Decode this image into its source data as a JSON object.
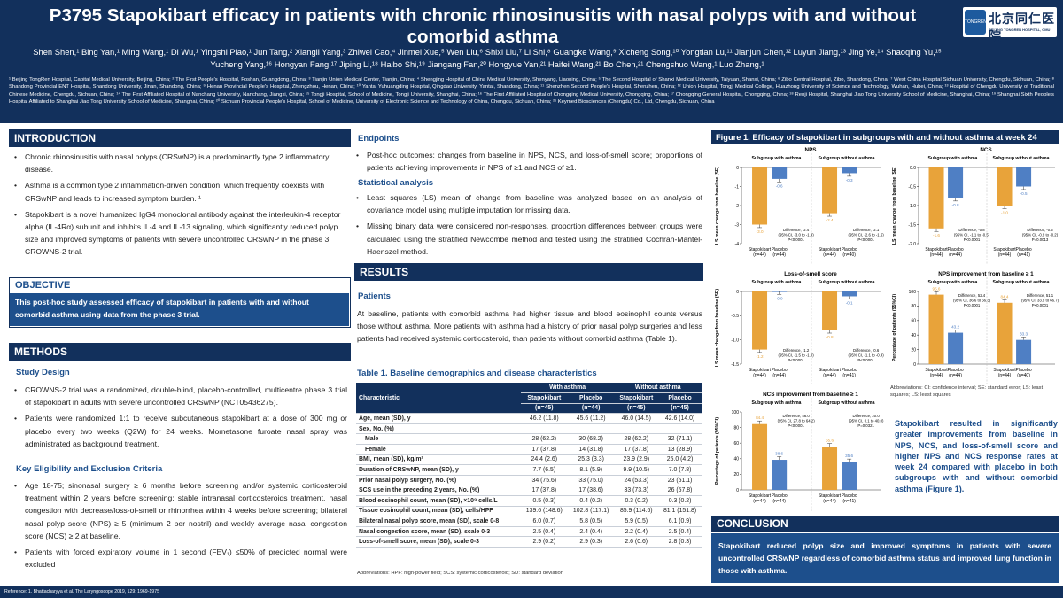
{
  "header": {
    "title": "P3795 Stapokibart efficacy in patients with chronic rhinosinusitis with nasal polyps with and without comorbid asthma",
    "authors": "Shen Shen,¹ Bing Yan,¹ Ming Wang,¹ Di Wu,¹ Yingshi Piao,¹ Jun Tang,² Xiangli Yang,³ Zhiwei Cao,⁴ Jinmei Xue,⁵ Wen Liu,⁶ Shixi Liu,⁷ Li Shi,⁸ Guangke Wang,⁹ Xicheng Song,¹⁰ Yongtian Lu,¹¹ Jianjun Chen,¹² Luyun Jiang,¹³ Jing Ye,¹⁴ Shaoqing Yu,¹⁵ Yucheng Yang,¹⁶ Hongyan Fang,¹⁷ Jiping Li,¹⁸ Haibo Shi,¹⁹ Jiangang Fan,²⁰ Hongyue Yan,²¹ Haifei Wang,²¹ Bo Chen,²¹ Chengshuo Wang,¹ Luo Zhang,¹",
    "affiliations": "¹ Beijing TongRen Hospital, Capital Medical University, Beijing, China; ² The First People's Hospital, Foshan, Guangdong, China; ³ Tianjin Union Medical Center, Tianjin, China; ⁴ Shengjing Hospital of China Medical University, Shenyang, Liaoning, China; ⁵ The Second Hospital of Shanxi Medical University, Taiyuan, Shanxi, China; ⁶ Zibo Central Hospital, Zibo, Shandong, China; ⁷ West China Hospital Sichuan University, Chengdu, Sichuan, China; ⁸ Shandong Provincial ENT Hospital, Shandong University, Jinan, Shandong, China; ⁹ Henan Provincial People's Hospital, Zhengzhou, Henan, China; ¹⁰ Yantai Yuhuangding Hospital, Qingdao University, Yantai, Shandong, China; ¹¹ Shenzhen Second People's Hospital, Shenzhen, China; ¹² Union Hospital, Tongji Medical College, Huazhong University of Science and Technology, Wuhan, Hubei, China; ¹³ Hospital of Chengdu University of Traditional Chinese Medicine, Chengdu, Sichuan, China; ¹⁴ The First Affiliated Hospital of Nanchang University, Nanchang, Jiangxi, China; ¹⁵ Tongji Hospital, School of Medicine, Tongji University, Shanghai, China; ¹⁶ The First Affiliated Hospital of Chongqing Medical University, Chongqing, China; ¹⁷ Chongqing General Hospital, Chongqing, China; ¹⁸ Renji Hospital, Shanghai Jiao Tong University School of Medicine, Shanghai, China; ¹⁹ Shanghai Sixth People's Hospital Affiliated to Shanghai Jiao Tong University School of Medicine, Shanghai, China; ²⁰ Sichuan Provincial People's Hospital, School of Medicine, University of Electronic Science and Technology of China, Chengdu, Sichuan, China; ²¹ Keymed Biosciences (Chengdu) Co., Ltd, Chengdu, Sichuan, China",
    "logo_badge": "TONGREN",
    "logo_cn": "北京同仁医院",
    "logo_en": "BEIJING TONGREN HOSPITAL, CMU"
  },
  "intro": {
    "heading": "INTRODUCTION",
    "bullets": [
      "Chronic rhinosinusitis with nasal polyps (CRSwNP) is a predominantly type 2 inflammatory disease.",
      "Asthma is a common type 2 inflammation-driven condition, which frequently coexists with CRSwNP and leads to increased symptom burden. ¹",
      "Stapokibart is a novel humanized IgG4 monoclonal antibody against the interleukin-4 receptor alpha (IL-4Rα) subunit and inhibits IL-4 and IL-13 signaling, which significantly reduced polyp size and improved symptoms of patients with severe uncontrolled CRSwNP in the phase 3 CROWNS-2 trial."
    ]
  },
  "objective": {
    "heading": "OBJECTIVE",
    "text": "This post-hoc study assessed efficacy of stapokibart in patients with and without comorbid asthma using data from the phase 3 trial."
  },
  "methods": {
    "heading": "METHODS",
    "design_heading": "Study Design",
    "design_bullets": [
      "CROWNS-2 trial was a randomized, double-blind, placebo-controlled, multicentre phase 3 trial of stapokibart in adults with severe uncontrolled CRSwNP (NCT05436275).",
      "Patients were randomized 1:1 to receive subcutaneous stapokibart at a dose of 300 mg or placebo every two weeks (Q2W) for 24 weeks. Mometasone furoate nasal spray was administrated as background treatment."
    ],
    "elig_heading": "Key Eligibility and Exclusion Criteria",
    "elig_bullets": [
      "Age 18-75; sinonasal surgery ≥ 6 months before screening and/or systemic corticosteroid treatment within 2 years before screening; stable intranasal corticosteroids treatment, nasal congestion with decrease/loss-of-smell or rhinorrhea within 4 weeks before screening; bilateral nasal polyp score (NPS) ≥ 5 (minimum 2 per nostril) and weekly average nasal congestion score (NCS) ≥ 2 at baseline.",
      "Patients with forced expiratory volume in 1 second (FEV₁) ≤50% of predicted normal were excluded"
    ]
  },
  "endpoints": {
    "heading": "Endpoints",
    "bullets": [
      "Post-hoc outcomes: changes from baseline in NPS, NCS, and loss-of-smell score; proportions of patients achieving improvements in NPS of ≥1 and NCS of ≥1."
    ]
  },
  "stats": {
    "heading": "Statistical analysis",
    "bullets": [
      "Least squares (LS) mean of change from baseline was analyzed based on an analysis of covariance model using multiple imputation for missing data.",
      "Missing binary data were considered non-responses, proportion differences between groups were calculated using the stratified Newcombe method and tested using the stratified Cochran-Mantel-Haenszel method."
    ]
  },
  "results": {
    "heading": "RESULTS",
    "patients_heading": "Patients",
    "patients_text": "At baseline, patients with comorbid asthma had higher tissue and blood eosinophil counts versus those without asthma. More patients with asthma had a history of prior nasal polyp surgeries and less patients had received systemic corticosteroid, than patients without comorbid asthma (Table 1)."
  },
  "table": {
    "title": "Table 1. Baseline demographics and disease characteristics",
    "char_header": "Characteristic",
    "group_with": "With asthma",
    "group_without": "Without asthma",
    "col_labels": [
      "Stapokibart",
      "Placebo",
      "Stapokibart",
      "Placebo"
    ],
    "col_ns": [
      "(n=45)",
      "(n=44)",
      "(n=45)",
      "(n=45)"
    ],
    "rows": [
      [
        "Age, mean (SD), y",
        "46.2 (11.8)",
        "45.6 (11.2)",
        "46.0 (14.5)",
        "42.6 (14.0)"
      ],
      [
        "Sex, No. (%)",
        "",
        "",
        "",
        ""
      ],
      [
        "Male",
        "28 (62.2)",
        "30 (68.2)",
        "28 (62.2)",
        "32 (71.1)"
      ],
      [
        "Female",
        "17 (37.8)",
        "14 (31.8)",
        "17 (37.8)",
        "13 (28.9)"
      ],
      [
        "BMI, mean (SD), kg/m²",
        "24.4 (2.6)",
        "25.3 (3.3)",
        "23.9 (2.9)",
        "25.0 (4.2)"
      ],
      [
        "Duration of CRSwNP, mean (SD), y",
        "7.7 (6.5)",
        "8.1 (5.9)",
        "9.9 (10.5)",
        "7.0 (7.8)"
      ],
      [
        "Prior nasal polyp surgery, No. (%)",
        "34 (75.6)",
        "33 (75.0)",
        "24 (53.3)",
        "23 (51.1)"
      ],
      [
        "SCS use in the preceding 2 years, No. (%)",
        "17 (37.8)",
        "17 (38.6)",
        "33 (73.3)",
        "26 (57.8)"
      ],
      [
        "Blood eosinophil count, mean (SD), ×10⁹ cells/L",
        "0.5 (0.3)",
        "0.4 (0.2)",
        "0.3 (0.2)",
        "0.3 (0.2)"
      ],
      [
        "Tissue eosinophil count, mean (SD), cells/HPF",
        "139.6 (148.6)",
        "102.8 (117.1)",
        "85.9 (114.6)",
        "81.1 (151.8)"
      ],
      [
        "Bilateral nasal polyp score, mean (SD), scale 0-8",
        "6.0 (0.7)",
        "5.8 (0.5)",
        "5.9 (0.5)",
        "6.1 (0.9)"
      ],
      [
        "Nasal congestion score, mean (SD), scale 0-3",
        "2.5 (0.4)",
        "2.4 (0.4)",
        "2.2 (0.4)",
        "2.5 (0.4)"
      ],
      [
        "Loss-of-smell score, mean (SD), scale 0-3",
        "2.9 (0.2)",
        "2.9 (0.3)",
        "2.6 (0.6)",
        "2.8 (0.3)"
      ]
    ],
    "abbrev": "Abbreviations: HPF: high-power field; SCS: systemic corticosteroid; SD: standard deviation"
  },
  "figure": {
    "title": "Figure 1. Efficacy of stapokibart in subgroups with and without asthma at week 24",
    "abbrev": "Abbreviations: CI: confidence interval; SE: standard error; LS: least squares; LS: least squares",
    "colors": {
      "stapokibart": "#e8a33a",
      "placebo": "#4f7fc4"
    }
  },
  "chart_data": [
    {
      "type": "bar",
      "title": "NPS",
      "ylabel": "LS mean change from baseline (SE)",
      "ylim": [
        -4,
        0
      ],
      "ticks": [
        "0",
        "-1",
        "-2",
        "-3",
        "-4"
      ],
      "panels": [
        {
          "subtitle": "Subgroup with asthma",
          "categories": [
            "Stapokibart (n=44)",
            "Placebo (n=44)"
          ],
          "values": [
            -3.0,
            -0.6
          ],
          "labels": [
            "-3.0",
            "-0.6"
          ],
          "diff": [
            "Difference, -2.4",
            "(95% CI, -3.0 to -1.9)",
            "P<0.0001"
          ]
        },
        {
          "subtitle": "Subgroup without asthma",
          "categories": [
            "Stapokibart (n=44)",
            "Placebo (n=40)"
          ],
          "values": [
            -2.4,
            -0.3
          ],
          "labels": [
            "-2.4",
            "-0.3"
          ],
          "diff": [
            "Difference, -2.1",
            "(95% CI, -2.6 to -1.6)",
            "P<0.0001"
          ]
        }
      ]
    },
    {
      "type": "bar",
      "title": "NCS",
      "ylabel": "LS mean change from baseline (SE)",
      "ylim": [
        -2,
        0
      ],
      "ticks": [
        "0.0",
        "-0.5",
        "-1.0",
        "-1.5",
        "-2.0"
      ],
      "panels": [
        {
          "subtitle": "Subgroup with asthma",
          "categories": [
            "Stapokibart (n=44)",
            "Placebo (n=44)"
          ],
          "values": [
            -1.6,
            -0.8
          ],
          "labels": [
            "-1.6",
            "-0.8"
          ],
          "diff": [
            "Difference, -0.8",
            "(95% CI, -1.1 to -0.5)",
            "P<0.0001"
          ]
        },
        {
          "subtitle": "Subgroup without asthma",
          "categories": [
            "Stapokibart (n=44)",
            "Placebo (n=41)"
          ],
          "values": [
            -1.0,
            -0.5
          ],
          "labels": [
            "-1.0",
            "-0.5"
          ],
          "diff": [
            "Difference, -0.5",
            "(95% CI, -0.9 to -0.2)",
            "P=0.0013"
          ]
        }
      ]
    },
    {
      "type": "bar",
      "title": "Loss-of-smell score",
      "ylabel": "LS mean change from baseline (SE)",
      "ylim": [
        -1.5,
        0
      ],
      "ticks": [
        "0",
        "-0.5",
        "-1.0",
        "-1.5"
      ],
      "panels": [
        {
          "subtitle": "Subgroup with asthma",
          "categories": [
            "Stapokibart (n=44)",
            "Placebo (n=44)"
          ],
          "values": [
            -1.2,
            -0.0
          ],
          "labels": [
            "-1.2",
            "-0.0"
          ],
          "diff": [
            "Difference, -1.2",
            "(95% CI, -1.5 to -1.0)",
            "P<0.0001"
          ]
        },
        {
          "subtitle": "Subgroup without asthma",
          "categories": [
            "Stapokibart (n=44)",
            "Placebo (n=41)"
          ],
          "values": [
            -0.8,
            -0.1
          ],
          "labels": [
            "-0.8",
            "-0.1"
          ],
          "diff": [
            "Difference, -0.6",
            "(95% CI, -1.1 to -0.4)",
            "P<0.0001"
          ]
        }
      ]
    },
    {
      "type": "bar",
      "title": "NPS improvement from baseline ≥ 1",
      "ylabel": "Percentage of patients (95%CI)",
      "ylim": [
        0,
        100
      ],
      "ticks": [
        "100",
        "80",
        "60",
        "40",
        "20",
        "0"
      ],
      "panels": [
        {
          "subtitle": "Subgroup with asthma",
          "categories": [
            "Stapokibart (n=44)",
            "Placebo (n=44)"
          ],
          "values": [
            95.6,
            43.2
          ],
          "labels": [
            "95.6",
            "43.2"
          ],
          "diff": [
            "Difference, 52.4",
            "(95% CI, 36.6 to 66.3)",
            "P<0.0001"
          ]
        },
        {
          "subtitle": "Subgroup without asthma",
          "categories": [
            "Stapokibart (n=44)",
            "Placebo (n=40)"
          ],
          "values": [
            84.4,
            33.3
          ],
          "labels": [
            "84.4",
            "33.3"
          ],
          "diff": [
            "Difference, 51.1",
            "(95% CI, 33.9 to 66.7)",
            "P<0.0001"
          ]
        }
      ]
    },
    {
      "type": "bar",
      "title": "NCS improvement from baseline ≥ 1",
      "ylabel": "Percentage of patients (95%CI)",
      "ylim": [
        0,
        100
      ],
      "ticks": [
        "100",
        "80",
        "60",
        "40",
        "20",
        "0"
      ],
      "panels": [
        {
          "subtitle": "Subgroup with asthma",
          "categories": [
            "Stapokibart (n=44)",
            "Placebo (n=44)"
          ],
          "values": [
            84.4,
            38.6
          ],
          "labels": [
            "84.4",
            "38.6"
          ],
          "diff": [
            "Difference, 46.0",
            "(95% CI, 27.8 to 64.2)",
            "P<0.0001"
          ]
        },
        {
          "subtitle": "Subgroup without asthma",
          "categories": [
            "Stapokibart (n=44)",
            "Placebo (n=41)"
          ],
          "values": [
            55.6,
            35.6
          ],
          "labels": [
            "55.6",
            "35.6"
          ],
          "diff": [
            "Difference, 20.0",
            "(95% CI, 0.1 to 40.0)",
            "P=0.0321"
          ]
        }
      ]
    }
  ],
  "summary": "Stapokibart resulted in significantly greater improvements from baseline in NPS, NCS, and loss-of-smell score and higher NPS and NCS response rates at week 24 compared with placebo in both subgroups with and without comorbid asthma (Figure 1).",
  "conclusion": {
    "heading": "CONCLUSION",
    "text": "Stapokibart reduced polyp size and improved symptoms in patients with severe uncontrolled CRSwNP regardless of comorbid asthma status and improved lung function in those with asthma."
  },
  "reference": "Reference: 1. Bhattacharyya et al. The Laryngoscope 2019, 129: 1969-1975"
}
